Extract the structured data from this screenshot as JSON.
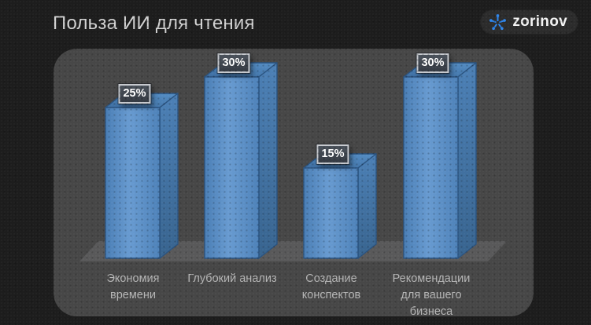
{
  "page": {
    "background": "#1d1d1d",
    "panel_color": "#474747"
  },
  "header": {
    "title": "Польза ИИ для чтения",
    "logo": {
      "text": "zorinov",
      "icon": "molecule-icon",
      "accent": "#2f86ec"
    }
  },
  "chart_data": {
    "type": "bar",
    "style": "3d-column",
    "title": "Польза ИИ для чтения",
    "categories": [
      "Экономия времени",
      "Глубокий анализ",
      "Создание конспектов",
      "Рекомендации для вашего бизнеса"
    ],
    "values": [
      25,
      30,
      15,
      30
    ],
    "data_labels": [
      "25%",
      "30%",
      "15%",
      "30%"
    ],
    "xlabel": "",
    "ylabel": "",
    "ylim": [
      0,
      30
    ],
    "grid": false,
    "legend": false,
    "bar_color": "#5b8ec6",
    "bar_edge_color": "#2a5380",
    "floor_color": "#59595a",
    "label_text_color": "#ffffff",
    "category_text_color": "#b7b7b7"
  }
}
